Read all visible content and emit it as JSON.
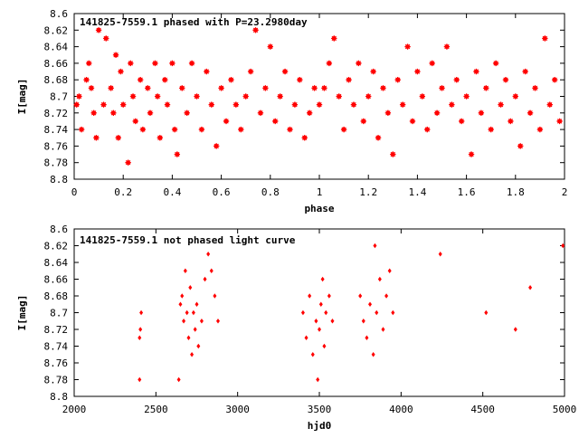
{
  "chart_data": [
    {
      "type": "scatter",
      "title": "141825-7559.1 phased with P=23.2980day",
      "xlabel": "phase",
      "ylabel": "I[mag]",
      "xlim": [
        0,
        2
      ],
      "ylim": [
        8.8,
        8.6
      ],
      "y_inverted": true,
      "x_ticks": [
        "0",
        "0.2",
        "0.4",
        "0.6",
        "0.8",
        "1",
        "1.2",
        "1.4",
        "1.6",
        "1.8",
        "2"
      ],
      "y_ticks": [
        "8.6",
        "8.62",
        "8.64",
        "8.66",
        "8.68",
        "8.7",
        "8.72",
        "8.74",
        "8.76",
        "8.78",
        "8.8"
      ],
      "x_tick_values": [
        0,
        0.2,
        0.4,
        0.6,
        0.8,
        1,
        1.2,
        1.4,
        1.6,
        1.8,
        2
      ],
      "y_tick_values": [
        8.6,
        8.62,
        8.64,
        8.66,
        8.68,
        8.7,
        8.72,
        8.74,
        8.76,
        8.78,
        8.8
      ],
      "marker_color": "#ff0000",
      "marker": "filled-star",
      "grid": false,
      "points": [
        [
          0.01,
          8.71
        ],
        [
          0.02,
          8.7
        ],
        [
          0.03,
          8.74
        ],
        [
          0.05,
          8.68
        ],
        [
          0.06,
          8.66
        ],
        [
          0.07,
          8.69
        ],
        [
          0.08,
          8.72
        ],
        [
          0.09,
          8.75
        ],
        [
          0.1,
          8.62
        ],
        [
          0.12,
          8.71
        ],
        [
          0.13,
          8.63
        ],
        [
          0.15,
          8.69
        ],
        [
          0.16,
          8.72
        ],
        [
          0.17,
          8.65
        ],
        [
          0.18,
          8.75
        ],
        [
          0.19,
          8.67
        ],
        [
          0.2,
          8.71
        ],
        [
          0.22,
          8.78
        ],
        [
          0.23,
          8.66
        ],
        [
          0.24,
          8.7
        ],
        [
          0.25,
          8.73
        ],
        [
          0.27,
          8.68
        ],
        [
          0.28,
          8.74
        ],
        [
          0.3,
          8.69
        ],
        [
          0.31,
          8.72
        ],
        [
          0.33,
          8.66
        ],
        [
          0.34,
          8.7
        ],
        [
          0.35,
          8.75
        ],
        [
          0.37,
          8.68
        ],
        [
          0.38,
          8.71
        ],
        [
          0.4,
          8.66
        ],
        [
          0.41,
          8.74
        ],
        [
          0.42,
          8.77
        ],
        [
          0.44,
          8.69
        ],
        [
          0.46,
          8.72
        ],
        [
          0.48,
          8.66
        ],
        [
          0.5,
          8.7
        ],
        [
          0.52,
          8.74
        ],
        [
          0.54,
          8.67
        ],
        [
          0.56,
          8.71
        ],
        [
          0.58,
          8.76
        ],
        [
          0.6,
          8.69
        ],
        [
          0.62,
          8.73
        ],
        [
          0.64,
          8.68
        ],
        [
          0.66,
          8.71
        ],
        [
          0.68,
          8.74
        ],
        [
          0.7,
          8.7
        ],
        [
          0.72,
          8.67
        ],
        [
          0.74,
          8.62
        ],
        [
          0.76,
          8.72
        ],
        [
          0.78,
          8.69
        ],
        [
          0.8,
          8.64
        ],
        [
          0.82,
          8.73
        ],
        [
          0.84,
          8.7
        ],
        [
          0.86,
          8.67
        ],
        [
          0.88,
          8.74
        ],
        [
          0.9,
          8.71
        ],
        [
          0.92,
          8.68
        ],
        [
          0.94,
          8.75
        ],
        [
          0.96,
          8.72
        ],
        [
          0.98,
          8.69
        ],
        [
          1.0,
          8.71
        ],
        [
          1.02,
          8.69
        ],
        [
          1.04,
          8.66
        ],
        [
          1.06,
          8.63
        ],
        [
          1.08,
          8.7
        ],
        [
          1.1,
          8.74
        ],
        [
          1.12,
          8.68
        ],
        [
          1.14,
          8.71
        ],
        [
          1.16,
          8.66
        ],
        [
          1.18,
          8.73
        ],
        [
          1.2,
          8.7
        ],
        [
          1.22,
          8.67
        ],
        [
          1.24,
          8.75
        ],
        [
          1.26,
          8.69
        ],
        [
          1.28,
          8.72
        ],
        [
          1.3,
          8.77
        ],
        [
          1.32,
          8.68
        ],
        [
          1.34,
          8.71
        ],
        [
          1.36,
          8.64
        ],
        [
          1.38,
          8.73
        ],
        [
          1.4,
          8.67
        ],
        [
          1.42,
          8.7
        ],
        [
          1.44,
          8.74
        ],
        [
          1.46,
          8.66
        ],
        [
          1.48,
          8.72
        ],
        [
          1.5,
          8.69
        ],
        [
          1.52,
          8.64
        ],
        [
          1.54,
          8.71
        ],
        [
          1.56,
          8.68
        ],
        [
          1.58,
          8.73
        ],
        [
          1.6,
          8.7
        ],
        [
          1.62,
          8.77
        ],
        [
          1.64,
          8.67
        ],
        [
          1.66,
          8.72
        ],
        [
          1.68,
          8.69
        ],
        [
          1.7,
          8.74
        ],
        [
          1.72,
          8.66
        ],
        [
          1.74,
          8.71
        ],
        [
          1.76,
          8.68
        ],
        [
          1.78,
          8.73
        ],
        [
          1.8,
          8.7
        ],
        [
          1.82,
          8.76
        ],
        [
          1.84,
          8.67
        ],
        [
          1.86,
          8.72
        ],
        [
          1.88,
          8.69
        ],
        [
          1.9,
          8.74
        ],
        [
          1.92,
          8.63
        ],
        [
          1.94,
          8.71
        ],
        [
          1.96,
          8.68
        ],
        [
          1.98,
          8.73
        ]
      ]
    },
    {
      "type": "scatter",
      "title": "141825-7559.1 not phased light curve",
      "xlabel": "hjd0",
      "ylabel": "I[mag]",
      "xlim": [
        2000,
        5000
      ],
      "ylim": [
        8.8,
        8.6
      ],
      "y_inverted": true,
      "x_ticks": [
        "2000",
        "2500",
        "3000",
        "3500",
        "4000",
        "4500",
        "5000"
      ],
      "y_ticks": [
        "8.6",
        "8.62",
        "8.64",
        "8.66",
        "8.68",
        "8.7",
        "8.72",
        "8.74",
        "8.76",
        "8.78",
        "8.8"
      ],
      "x_tick_values": [
        2000,
        2500,
        3000,
        3500,
        4000,
        4500,
        5000
      ],
      "y_tick_values": [
        8.6,
        8.62,
        8.64,
        8.66,
        8.68,
        8.7,
        8.72,
        8.74,
        8.76,
        8.78,
        8.8
      ],
      "marker_color": "#ff0000",
      "marker": "diamond",
      "grid": false,
      "points": [
        [
          2400,
          8.78
        ],
        [
          2400,
          8.73
        ],
        [
          2405,
          8.72
        ],
        [
          2410,
          8.7
        ],
        [
          2640,
          8.78
        ],
        [
          2650,
          8.69
        ],
        [
          2660,
          8.68
        ],
        [
          2670,
          8.71
        ],
        [
          2680,
          8.65
        ],
        [
          2690,
          8.7
        ],
        [
          2700,
          8.73
        ],
        [
          2710,
          8.67
        ],
        [
          2720,
          8.75
        ],
        [
          2730,
          8.7
        ],
        [
          2740,
          8.72
        ],
        [
          2750,
          8.69
        ],
        [
          2760,
          8.74
        ],
        [
          2780,
          8.71
        ],
        [
          2800,
          8.66
        ],
        [
          2820,
          8.63
        ],
        [
          2840,
          8.65
        ],
        [
          2860,
          8.68
        ],
        [
          2880,
          8.71
        ],
        [
          3400,
          8.7
        ],
        [
          3420,
          8.73
        ],
        [
          3440,
          8.68
        ],
        [
          3460,
          8.75
        ],
        [
          3480,
          8.71
        ],
        [
          3490,
          8.78
        ],
        [
          3500,
          8.72
        ],
        [
          3510,
          8.69
        ],
        [
          3520,
          8.66
        ],
        [
          3530,
          8.74
        ],
        [
          3540,
          8.7
        ],
        [
          3560,
          8.68
        ],
        [
          3580,
          8.71
        ],
        [
          3750,
          8.68
        ],
        [
          3770,
          8.71
        ],
        [
          3790,
          8.73
        ],
        [
          3810,
          8.69
        ],
        [
          3830,
          8.75
        ],
        [
          3850,
          8.7
        ],
        [
          3870,
          8.66
        ],
        [
          3890,
          8.72
        ],
        [
          3910,
          8.68
        ],
        [
          3930,
          8.65
        ],
        [
          3950,
          8.7
        ],
        [
          3840,
          8.62
        ],
        [
          4240,
          8.63
        ],
        [
          4520,
          8.7
        ],
        [
          4700,
          8.72
        ],
        [
          4790,
          8.67
        ],
        [
          4990,
          8.62
        ]
      ]
    }
  ]
}
